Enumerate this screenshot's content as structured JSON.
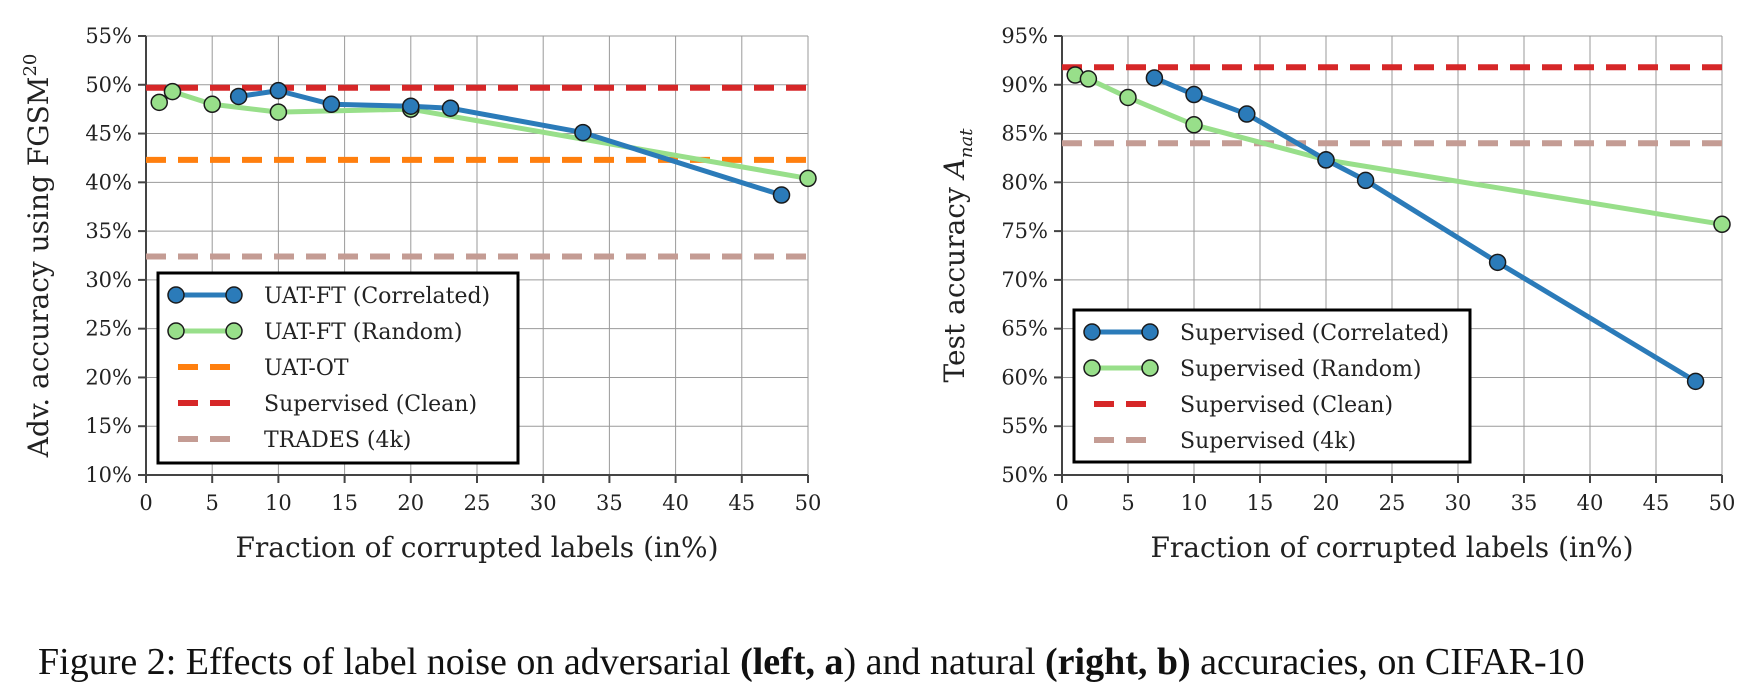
{
  "chart_data": [
    {
      "type": "line",
      "xlabel": "Fraction of corrupted labels (in%)",
      "ylabel": "Adv. accuracy using FGSM",
      "ylabel_superscript": "20",
      "xlim": [
        0,
        50
      ],
      "ylim": [
        10,
        55
      ],
      "xticks": [
        0,
        5,
        10,
        15,
        20,
        25,
        30,
        35,
        40,
        45,
        50
      ],
      "yticks": [
        10,
        15,
        20,
        25,
        30,
        35,
        40,
        45,
        50,
        55
      ],
      "ytick_suffix": "%",
      "grid": true,
      "legend_position": "lower-left",
      "series": [
        {
          "name": "UAT-FT (Correlated)",
          "style": "line-markers",
          "color": "#2b7bb9",
          "x": [
            7,
            10,
            14,
            20,
            23,
            33,
            48
          ],
          "y": [
            48.8,
            49.4,
            48.0,
            47.8,
            47.6,
            45.1,
            38.7
          ]
        },
        {
          "name": "UAT-FT (Random)",
          "style": "line-markers",
          "color": "#98df8a",
          "x": [
            1,
            2,
            5,
            10,
            20,
            50
          ],
          "y": [
            48.2,
            49.3,
            48.0,
            47.2,
            47.5,
            40.4
          ]
        },
        {
          "name": "UAT-OT",
          "style": "dashed",
          "color": "#ff7f0e",
          "y": 42.3
        },
        {
          "name": "Supervised (Clean)",
          "style": "dashed",
          "color": "#d62728",
          "y": 49.7
        },
        {
          "name": "TRADES (4k)",
          "style": "dashed",
          "color": "#c49c94",
          "y": 32.4
        }
      ]
    },
    {
      "type": "line",
      "xlabel": "Fraction of corrupted labels (in%)",
      "ylabel": "Test accuracy",
      "ylabel_symbol": "A",
      "ylabel_subscript": "nat",
      "xlim": [
        0,
        50
      ],
      "ylim": [
        50,
        95
      ],
      "xticks": [
        0,
        5,
        10,
        15,
        20,
        25,
        30,
        35,
        40,
        45,
        50
      ],
      "yticks": [
        50,
        55,
        60,
        65,
        70,
        75,
        80,
        85,
        90,
        95
      ],
      "ytick_suffix": "%",
      "grid": true,
      "legend_position": "lower-left",
      "series": [
        {
          "name": "Supervised (Correlated)",
          "style": "line-markers",
          "color": "#2b7bb9",
          "x": [
            7,
            10,
            14,
            20,
            23,
            33,
            48
          ],
          "y": [
            90.7,
            89.0,
            87.0,
            82.3,
            80.2,
            71.8,
            59.6
          ]
        },
        {
          "name": "Supervised (Random)",
          "style": "line-markers",
          "color": "#98df8a",
          "x": [
            1,
            2,
            5,
            10,
            20,
            50
          ],
          "y": [
            91.0,
            90.6,
            88.7,
            85.9,
            82.3,
            75.7
          ]
        },
        {
          "name": "Supervised (Clean)",
          "style": "dashed",
          "color": "#d62728",
          "y": 91.8
        },
        {
          "name": "Supervised (4k)",
          "style": "dashed",
          "color": "#c49c94",
          "y": 84.0
        }
      ]
    }
  ],
  "caption": {
    "prefix": "Figure 2:",
    "part1": " Effects of label noise on adversarial ",
    "bold1": "(left, a",
    "part2": ") and natural ",
    "bold2": "(right, b)",
    "part3": " accuracies, on CIFAR-10"
  }
}
